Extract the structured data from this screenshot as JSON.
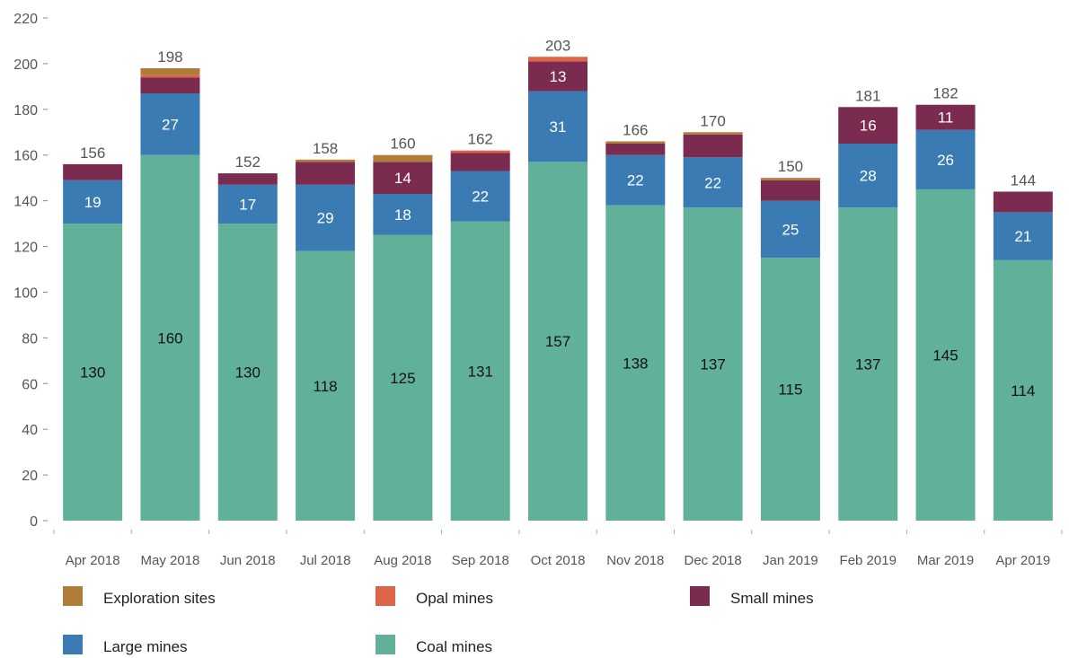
{
  "chart_data": {
    "type": "bar",
    "stacked": true,
    "categories": [
      "Apr 2018",
      "May 2018",
      "Jun 2018",
      "Jul 2018",
      "Aug 2018",
      "Sep 2018",
      "Oct 2018",
      "Nov 2018",
      "Dec 2018",
      "Jan 2019",
      "Feb 2019",
      "Mar 2019",
      "Apr 2019"
    ],
    "ylim": [
      0,
      220
    ],
    "yticks": [
      0,
      20,
      40,
      60,
      80,
      100,
      120,
      140,
      160,
      180,
      200,
      220
    ],
    "totals": [
      156,
      198,
      152,
      158,
      160,
      162,
      203,
      166,
      170,
      150,
      181,
      182,
      144
    ],
    "series": [
      {
        "name": "Coal mines",
        "color": "#61b19a",
        "label_color": "#111111",
        "values": [
          130,
          160,
          130,
          118,
          125,
          131,
          157,
          138,
          137,
          115,
          137,
          145,
          114
        ],
        "labels": [
          "130",
          "160",
          "130",
          "118",
          "125",
          "131",
          "157",
          "138",
          "137",
          "115",
          "137",
          "145",
          "114"
        ]
      },
      {
        "name": "Large mines",
        "color": "#3a7bb3",
        "label_color": "#ffffff",
        "values": [
          19,
          27,
          17,
          29,
          18,
          22,
          31,
          22,
          22,
          25,
          28,
          26,
          21
        ],
        "labels": [
          "19",
          "27",
          "17",
          "29",
          "18",
          "22",
          "31",
          "22",
          "22",
          "25",
          "28",
          "26",
          "21"
        ]
      },
      {
        "name": "Small mines",
        "color": "#7b2b4f",
        "label_color": "#ffffff",
        "values": [
          7,
          7,
          5,
          10,
          14,
          8,
          13,
          5,
          10,
          9,
          16,
          11,
          9
        ],
        "labels": [
          "",
          "",
          "",
          "",
          "14",
          "",
          "13",
          "",
          "",
          "",
          "16",
          "11",
          ""
        ]
      },
      {
        "name": "Opal mines",
        "color": "#de6448",
        "label_color": "#ffffff",
        "values": [
          0,
          1,
          0,
          0,
          0,
          1,
          2,
          0,
          0,
          0,
          0,
          0,
          0
        ],
        "labels": [
          "",
          "",
          "",
          "",
          "",
          "",
          "",
          "",
          "",
          "",
          "",
          "",
          ""
        ]
      },
      {
        "name": "Exploration sites",
        "color": "#b07c3a",
        "label_color": "#ffffff",
        "values": [
          0,
          3,
          0,
          1,
          3,
          0,
          0,
          1,
          1,
          1,
          0,
          0,
          0
        ],
        "labels": [
          "",
          "",
          "",
          "",
          "",
          "",
          "",
          "",
          "",
          "",
          "",
          "",
          ""
        ]
      }
    ],
    "legend": {
      "placement": "bottom",
      "order": [
        "Exploration sites",
        "Opal mines",
        "Small mines",
        "Large mines",
        "Coal mines"
      ]
    },
    "grid": false
  }
}
